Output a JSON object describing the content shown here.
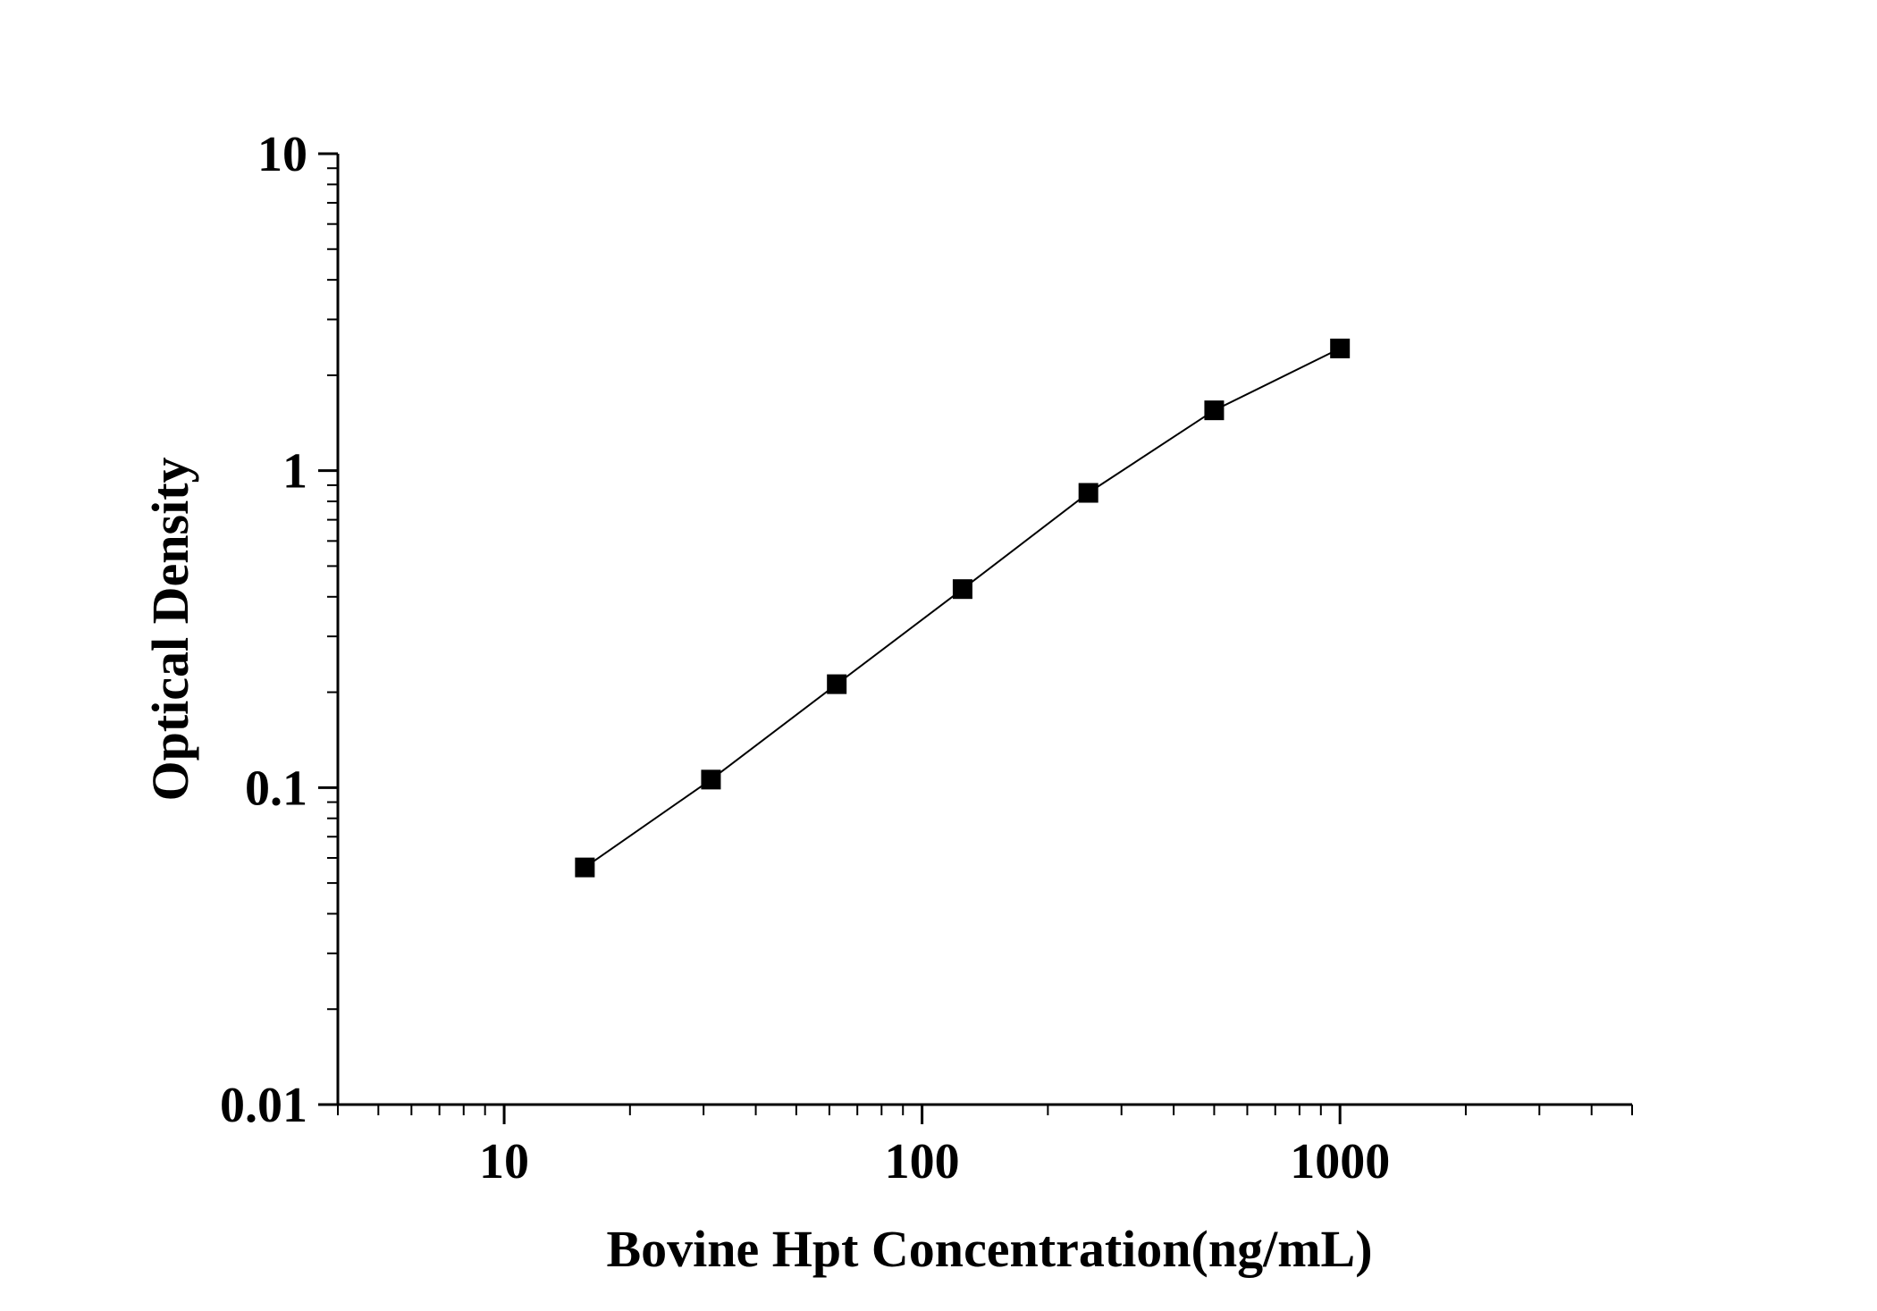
{
  "chart_data": {
    "type": "line",
    "title": "",
    "xlabel": "Bovine Hpt Concentration(ng/mL)",
    "ylabel": "Optical Density",
    "x_scale": "log",
    "y_scale": "log",
    "xlim": [
      4,
      5000
    ],
    "ylim": [
      0.01,
      10
    ],
    "x_ticks": [
      10,
      100,
      1000
    ],
    "x_tick_labels": [
      "10",
      "100",
      "1000"
    ],
    "y_ticks": [
      0.01,
      0.1,
      1,
      10
    ],
    "y_tick_labels": [
      "0.01",
      "0.1",
      "1",
      "10"
    ],
    "grid": false,
    "legend": "none",
    "marker": "square",
    "color": "#000000",
    "series": [
      {
        "x": [
          15.6,
          31.25,
          62.5,
          125,
          250,
          500,
          1000
        ],
        "y": [
          0.056,
          0.106,
          0.212,
          0.423,
          0.851,
          1.55,
          2.43
        ]
      }
    ]
  }
}
